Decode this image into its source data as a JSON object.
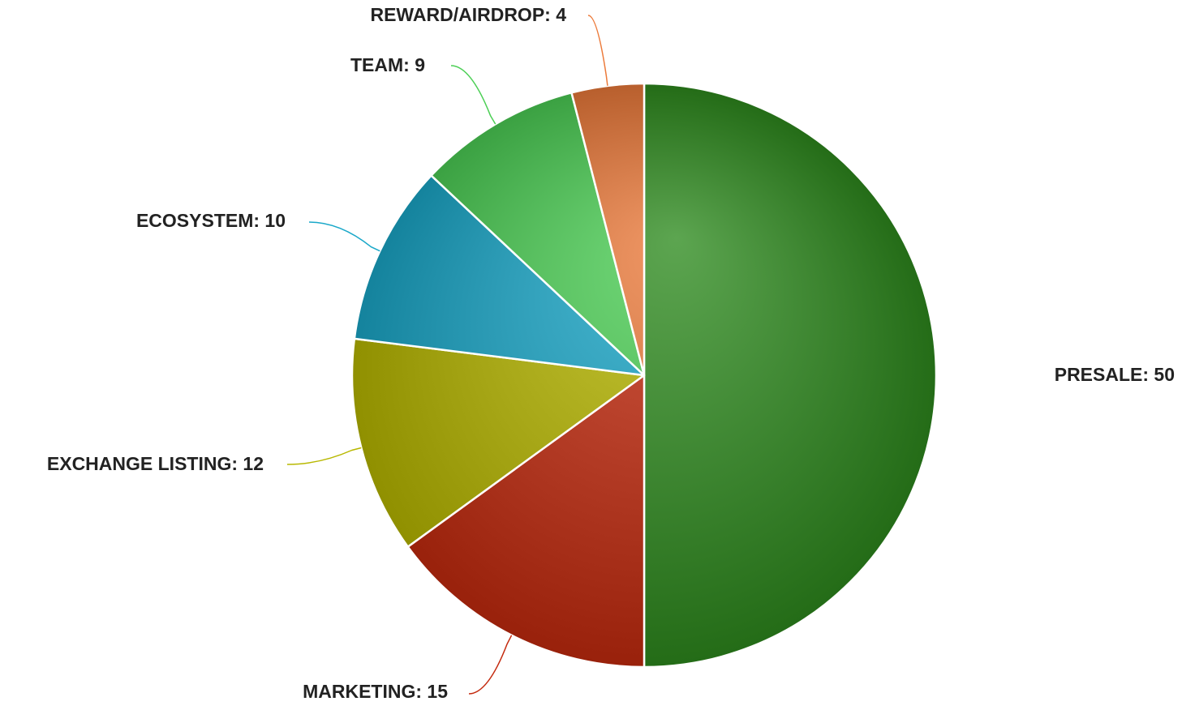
{
  "chart_data": {
    "type": "pie",
    "slices": [
      {
        "label": "PRESALE",
        "value": 50,
        "color": "#2e8b1e"
      },
      {
        "label": "MARKETING",
        "value": 15,
        "color": "#c42a0e"
      },
      {
        "label": "EXCHANGE LISTING",
        "value": 12,
        "color": "#b8b800"
      },
      {
        "label": "ECOSYSTEM",
        "value": 10,
        "color": "#1aa8c9"
      },
      {
        "label": "TEAM",
        "value": 9,
        "color": "#4ccf55"
      },
      {
        "label": "REWARD/AIRDROP",
        "value": 4,
        "color": "#ec7a3a"
      }
    ],
    "legend": "none",
    "data_labels": "outside-with-connectors"
  }
}
